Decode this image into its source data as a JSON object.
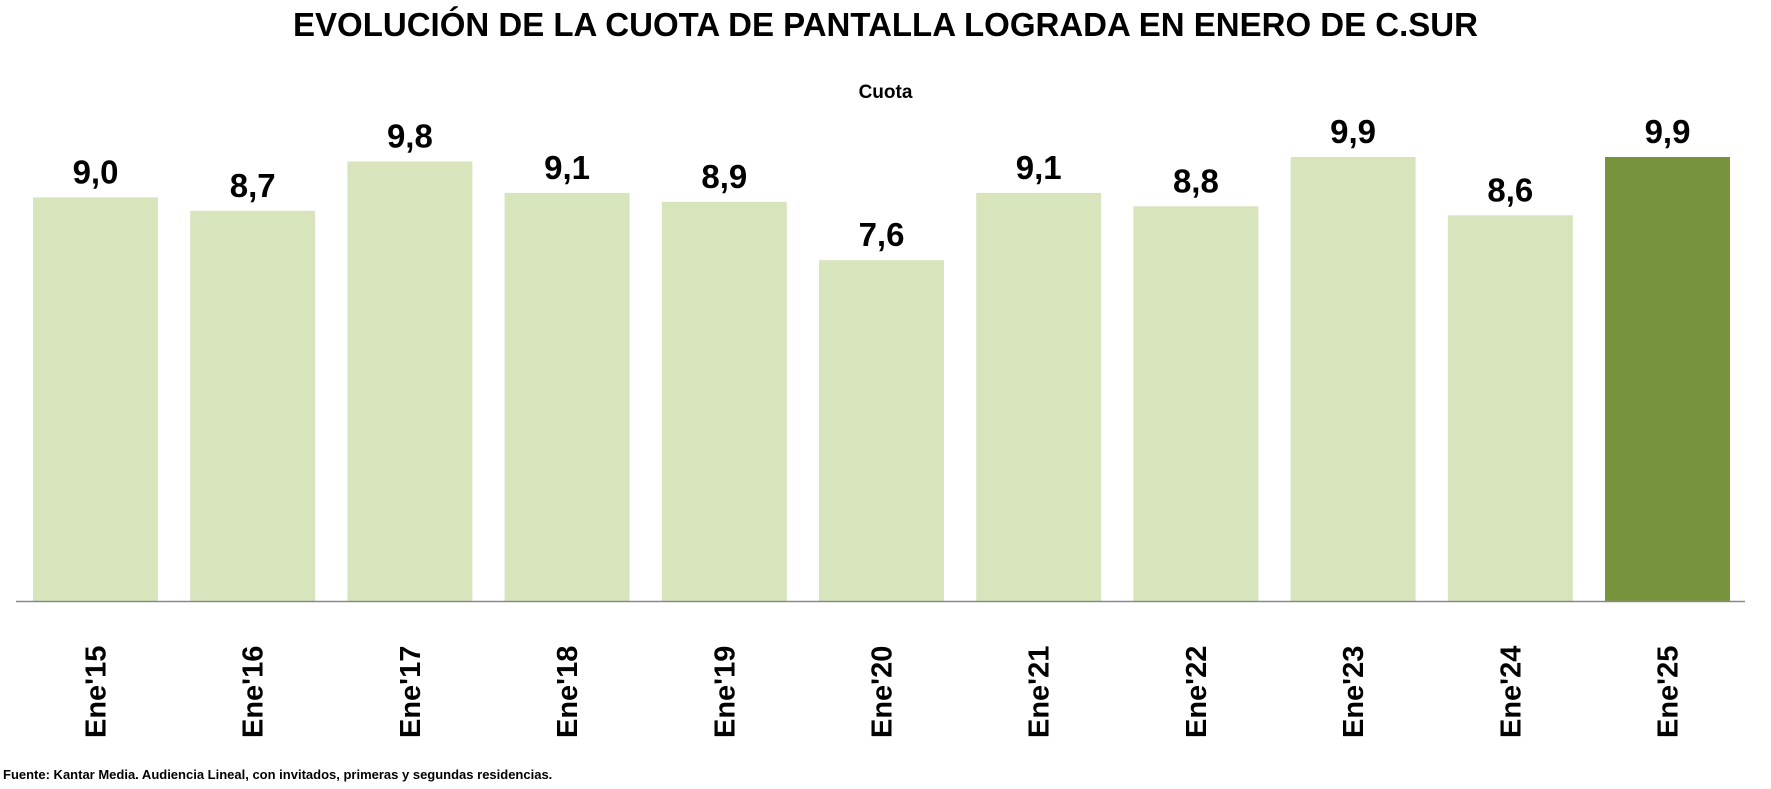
{
  "chart_data": {
    "type": "bar",
    "title": "EVOLUCIÓN DE LA CUOTA DE PANTALLA LOGRADA EN ENERO DE C.SUR",
    "series_name": "Cuota",
    "xlabel": "",
    "ylabel": "",
    "ylim": [
      0,
      10
    ],
    "grid": false,
    "legend": "none",
    "categories": [
      "Ene'15",
      "Ene'16",
      "Ene'17",
      "Ene'18",
      "Ene'19",
      "Ene'20",
      "Ene'21",
      "Ene'22",
      "Ene'23",
      "Ene'24",
      "Ene'25"
    ],
    "values": [
      9.0,
      8.7,
      9.8,
      9.1,
      8.9,
      7.6,
      9.1,
      8.8,
      9.9,
      8.6,
      9.9
    ],
    "data_labels": [
      "9,0",
      "8,7",
      "9,8",
      "9,1",
      "8,9",
      "7,6",
      "9,1",
      "8,8",
      "9,9",
      "8,6",
      "9,9"
    ],
    "highlight_index": 10,
    "colors": {
      "bar": "#d8e4bc",
      "highlight": "#77933c",
      "axis": "#898989"
    },
    "source": "Fuente: Kantar Media. Audiencia Lineal, con invitados, primeras y segundas residencias."
  }
}
